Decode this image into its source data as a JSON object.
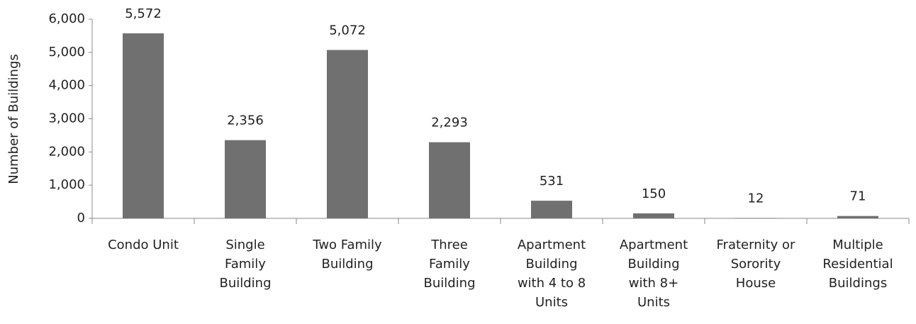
{
  "chart_data": {
    "type": "bar",
    "y_label": "Number of Buildings",
    "categories": [
      "Condo Unit",
      "Single\nFamily\nBuilding",
      "Two Family\nBuilding",
      "Three\nFamily\nBuilding",
      "Apartment\nBuilding\nwith 4 to 8\nUnits",
      "Apartment\nBuilding\nwith 8+\nUnits",
      "Fraternity or\nSorority\nHouse",
      "Multiple\nResidential\nBuildings"
    ],
    "values": [
      5572,
      2356,
      5072,
      2293,
      531,
      150,
      12,
      71
    ],
    "value_labels": [
      "5,572",
      "2,356",
      "5,072",
      "2,293",
      "531",
      "150",
      "12",
      "71"
    ],
    "color": "#707070",
    "ylim": [
      0,
      6000
    ],
    "yticks": [
      0,
      {
        "value": 1000,
        "label": "1,000"
      },
      {
        "value": 2000,
        "label": "2,000"
      },
      {
        "value": 3000,
        "label": "3,000"
      },
      {
        "value": 4000,
        "label": "4,000"
      },
      {
        "value": 5000,
        "label": "5,000"
      },
      {
        "value": 6000,
        "label": "6,000"
      }
    ]
  }
}
